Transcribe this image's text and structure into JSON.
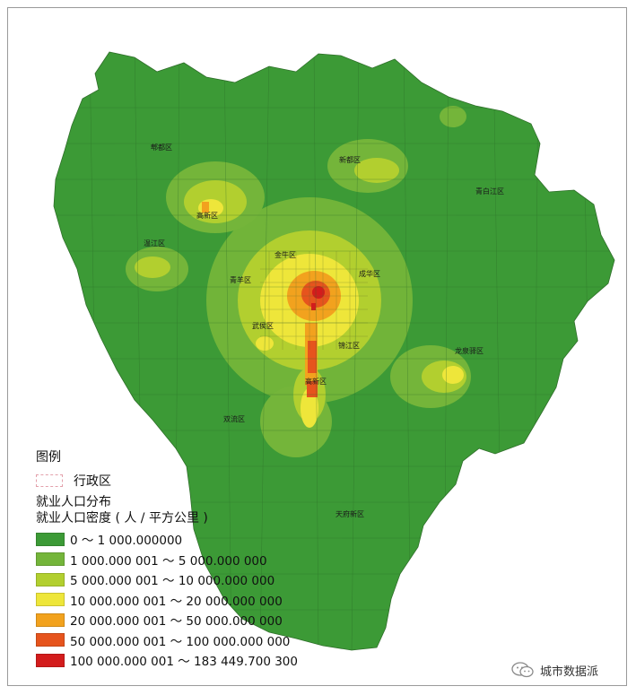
{
  "districts": [
    {
      "name": "郫都区"
    },
    {
      "name": "新都区"
    },
    {
      "name": "青白江区"
    },
    {
      "name": "温江区"
    },
    {
      "name": "金牛区"
    },
    {
      "name": "青羊区"
    },
    {
      "name": "成华区"
    },
    {
      "name": "武侯区"
    },
    {
      "name": "锦江区"
    },
    {
      "name": "高新区"
    },
    {
      "name": "龙泉驿区"
    },
    {
      "name": "双流区"
    },
    {
      "name": "天府新区"
    }
  ],
  "extra_label": {
    "name": "高新区"
  },
  "legend": {
    "title": "图例",
    "admin_label": "行政区",
    "layer_title": "就业人口分布",
    "field_title": "就业人口密度 ( 人 / 平方公里 )",
    "classes": [
      {
        "label": "0 ～ 1 000.000000",
        "color": "#3c9a36"
      },
      {
        "label": "1 000.000 001 ～ 5 000.000 000",
        "color": "#74b53a"
      },
      {
        "label": "5 000.000 001 ～ 10 000.000 000",
        "color": "#b2cf2f"
      },
      {
        "label": "10 000.000 001 ～ 20 000.000 000",
        "color": "#eee63a"
      },
      {
        "label": "20 000.000 001 ～ 50 000.000 000",
        "color": "#f2a21e"
      },
      {
        "label": "50 000.000 001 ～ 100 000.000 000",
        "color": "#e6541d"
      },
      {
        "label": "100 000.000 001 ～ 183 449.700 300",
        "color": "#d31c1c"
      }
    ]
  },
  "watermark": "城市数据派"
}
